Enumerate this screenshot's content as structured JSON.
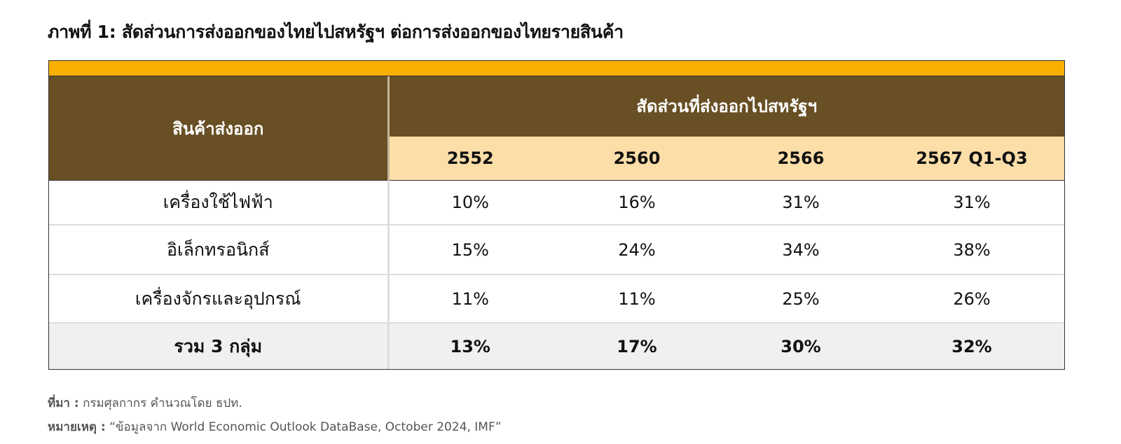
{
  "title": "ภาพที่ 1: สัดส่วนการส่งออกของไทยไปสหรัฐฯ ต่อการส่งออกของไทยรายสินค้า",
  "table": {
    "header_product": "สินค้าส่งออก",
    "header_group": "สัดส่วนที่ส่งออกไปสหรัฐฯ",
    "years": [
      "2552",
      "2560",
      "2566",
      "2567 Q1-Q3"
    ],
    "rows": [
      {
        "product": "เครื่องใช้ไฟฟ้า",
        "values": [
          "10%",
          "16%",
          "31%",
          "31%"
        ]
      },
      {
        "product": "อิเล็กทรอนิกส์",
        "values": [
          "15%",
          "24%",
          "34%",
          "38%"
        ]
      },
      {
        "product": "เครื่องจักรและอุปกรณ์",
        "values": [
          "11%",
          "11%",
          "25%",
          "26%"
        ]
      },
      {
        "product": "รวม 3 กลุ่ม",
        "values": [
          "13%",
          "17%",
          "30%",
          "32%"
        ]
      }
    ]
  },
  "footnotes": {
    "source_label": "ที่มา :",
    "source_text": "กรมศุลกากร คำนวณโดย ธปท.",
    "note_label": "หมายเหตุ :",
    "note_text": "“ข้อมูลจาก World Economic Outlook DataBase, October 2024, IMF”"
  },
  "colors": {
    "accent_bar": "#f9af00",
    "header_brown": "#684f24",
    "year_header": "#fcdea9",
    "total_row": "#f0f0f0"
  }
}
